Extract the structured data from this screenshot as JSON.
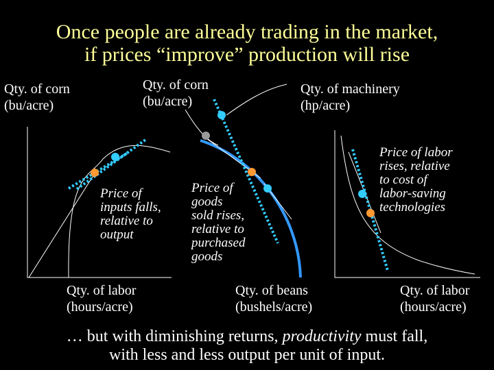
{
  "title": {
    "line1": "Once people are already trading in the market,",
    "line2": "if prices “improve” production will rise"
  },
  "panel1": {
    "y_label_1": "Qty. of corn",
    "y_label_2": "(bu/acre)",
    "x_label_1": "Qty. of labor",
    "x_label_2": "(hours/acre)",
    "note": [
      "Price of",
      "inputs falls,",
      "relative to",
      "output"
    ]
  },
  "panel2": {
    "y_label_1": "Qty. of corn",
    "y_label_2": "(bu/acre)",
    "x_label_1": "Qty. of beans",
    "x_label_2": "(bushels/acre)",
    "note": [
      "Price of",
      "goods",
      "sold rises,",
      "relative to",
      "purchased",
      "goods"
    ]
  },
  "panel3": {
    "y_label_1": "Qty. of machinery",
    "y_label_2": "(hp/acre)",
    "x_label_1": "Qty. of labor",
    "x_label_2": "(hours/acre)",
    "note": [
      "Price of labor",
      "rises, relative",
      "to cost of",
      "labor-saving",
      "technologies"
    ]
  },
  "footer": {
    "pre": "… but with diminishing returns,",
    "em": "productivity",
    "post": "must fall,",
    "line2": "with less and less output per unit of input."
  },
  "colors": {
    "title": "#ffff99",
    "text": "#ffffff",
    "curve": "#ffffff",
    "price_line": "#33ccff",
    "frontier": "#3399ff",
    "point_old": "#ff9933",
    "point_new": "#33ccff",
    "point_origin": "#999999"
  }
}
